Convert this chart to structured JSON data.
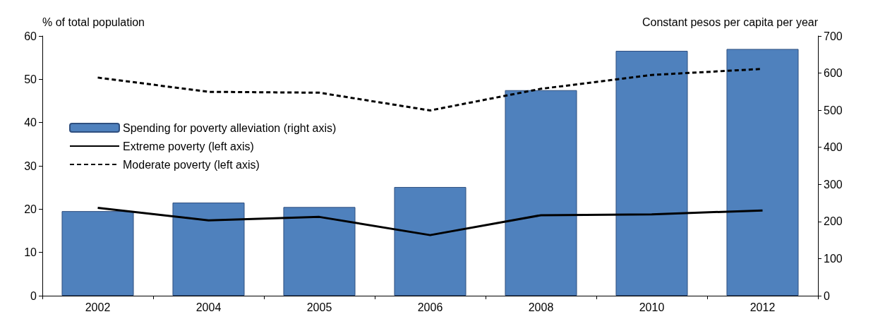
{
  "chart_data": {
    "type": "bar",
    "ylabel": "% of total population",
    "y2label": "Constant pesos per capita per year",
    "categories": [
      "2002",
      "2004",
      "2005",
      "2006",
      "2008",
      "2010",
      "2012"
    ],
    "series": [
      {
        "name": "Spending for poverty alleviation (right axis)",
        "axis": "y2",
        "color": "#4f81bd",
        "values": [
          228,
          251,
          239,
          293,
          554,
          660,
          665
        ]
      },
      {
        "name": "Extreme poverty (left axis)",
        "type": "line",
        "color": "#000000",
        "line_style": "solid",
        "values": [
          20.3,
          17.4,
          18.2,
          14.0,
          18.6,
          18.8,
          19.7
        ]
      },
      {
        "name": "Moderate poverty (left axis)",
        "type": "line",
        "color": "#000000",
        "line_style": "dashed",
        "values": [
          50.4,
          47.1,
          46.9,
          42.8,
          47.8,
          51.0,
          52.4
        ]
      }
    ],
    "ylim": [
      0,
      60
    ],
    "yticks": [
      0,
      10,
      20,
      30,
      40,
      50,
      60
    ],
    "y2lim": [
      0,
      700
    ],
    "y2ticks": [
      0,
      100,
      200,
      300,
      400,
      500,
      600,
      700
    ],
    "grid": false,
    "legend": "left",
    "marker": "none"
  }
}
